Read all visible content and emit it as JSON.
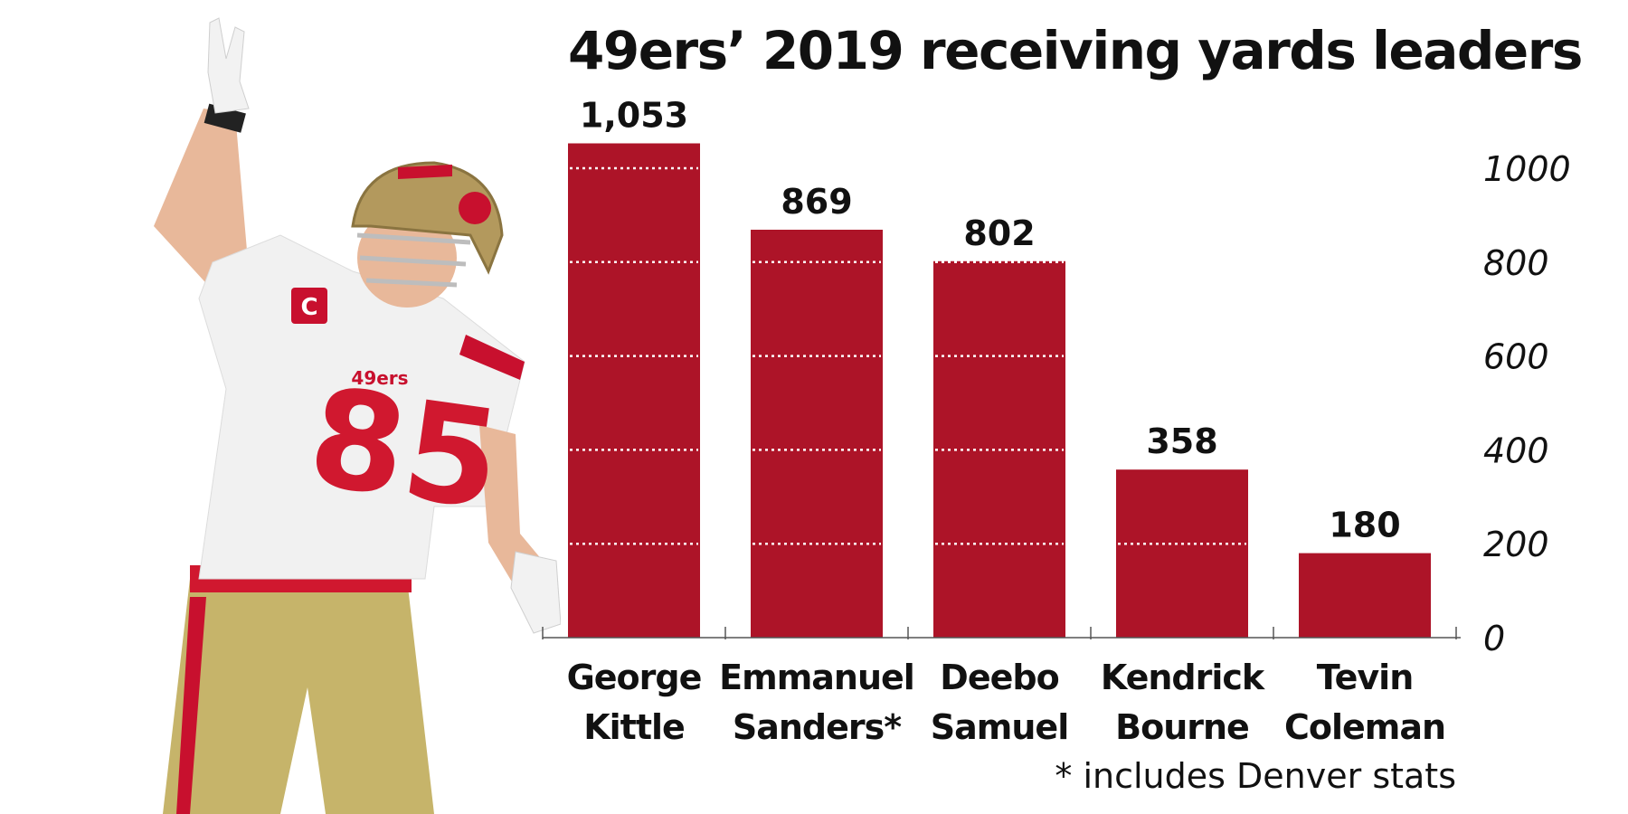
{
  "title": "49ers’ 2019 receiving yards leaders",
  "footnote": "* includes Denver stats",
  "colors": {
    "bar": "#ad1428",
    "grid": "#ffffff",
    "axis": "#555555"
  },
  "player_image": {
    "icon": "football-player-photo",
    "jersey_number": "85",
    "jersey_patch": "C",
    "jersey_wordmark": "49ers"
  },
  "chart_data": {
    "type": "bar",
    "categories": [
      [
        "George",
        "Kittle"
      ],
      [
        "Emmanuel",
        "Sanders*"
      ],
      [
        "Deebo",
        "Samuel"
      ],
      [
        "Kendrick",
        "Bourne"
      ],
      [
        "Tevin",
        "Coleman"
      ]
    ],
    "values": [
      1053,
      869,
      802,
      358,
      180
    ],
    "data_labels": [
      "1,053",
      "869",
      "802",
      "358",
      "180"
    ],
    "y_ticks": [
      0,
      200,
      400,
      600,
      800,
      1000
    ],
    "ylim": [
      0,
      1053
    ],
    "y_axis_side": "right",
    "grid": "dotted lines inside bars"
  }
}
